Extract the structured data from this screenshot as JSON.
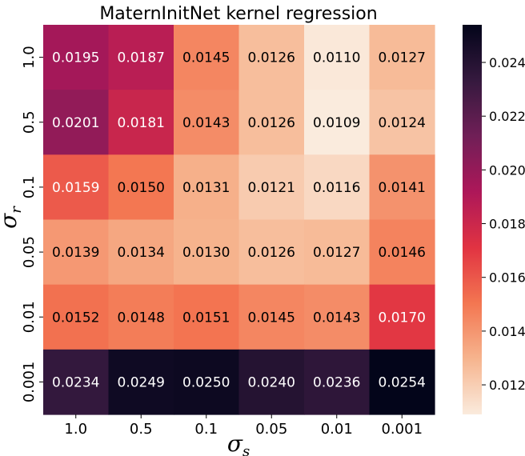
{
  "chart_data": {
    "type": "heatmap",
    "title": "MaternInitNet kernel regression",
    "xlabel": "σ",
    "xlabel_sub": "s",
    "ylabel": "σ",
    "ylabel_sub": "r",
    "x_categories": [
      "1.0",
      "0.5",
      "0.1",
      "0.05",
      "0.01",
      "0.001"
    ],
    "y_categories": [
      "1.0",
      "0.5",
      "0.1",
      "0.05",
      "0.01",
      "0.001"
    ],
    "values": [
      [
        0.0195,
        0.0187,
        0.0145,
        0.0126,
        0.011,
        0.0127
      ],
      [
        0.0201,
        0.0181,
        0.0143,
        0.0126,
        0.0109,
        0.0124
      ],
      [
        0.0159,
        0.015,
        0.0131,
        0.0121,
        0.0116,
        0.0141
      ],
      [
        0.0139,
        0.0134,
        0.013,
        0.0126,
        0.0127,
        0.0146
      ],
      [
        0.0152,
        0.0148,
        0.0151,
        0.0145,
        0.0143,
        0.017
      ],
      [
        0.0234,
        0.0249,
        0.025,
        0.024,
        0.0236,
        0.0254
      ]
    ],
    "colorbar": {
      "vmin": 0.0109,
      "vmax": 0.0254,
      "ticks": [
        0.012,
        0.014,
        0.016,
        0.018,
        0.02,
        0.022,
        0.024
      ],
      "tick_labels": [
        "0.012",
        "0.014",
        "0.016",
        "0.018",
        "0.020",
        "0.022",
        "0.024"
      ]
    },
    "colormap": [
      "#faebdd",
      "#f6b48e",
      "#f37651",
      "#e13342",
      "#ad1759",
      "#701f57",
      "#35193e",
      "#03051a"
    ]
  }
}
